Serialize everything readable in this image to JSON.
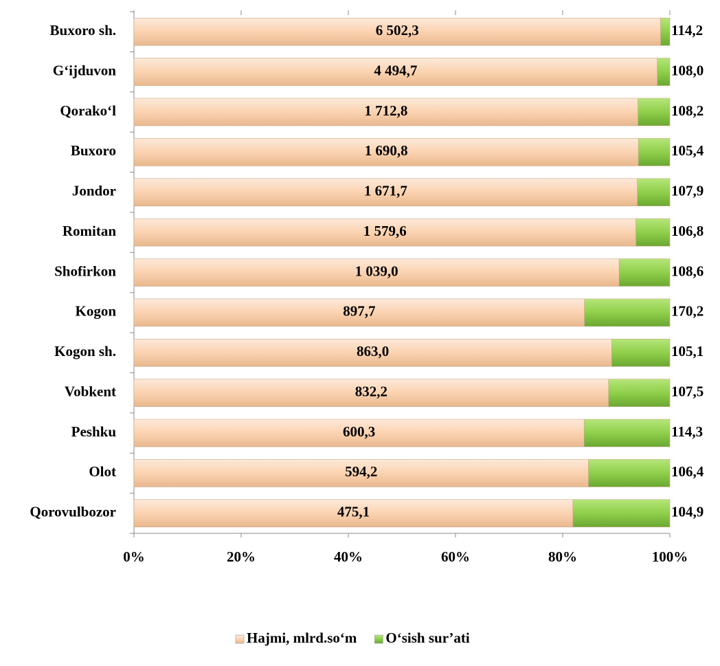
{
  "chart_data": {
    "type": "stacked_bar_100",
    "categories": [
      "Buxoro  sh.",
      "G‘ijduvon",
      "Qorako‘l",
      "Buxoro",
      "Jondor",
      "Romitan",
      "Shofirkon",
      "Kogon",
      "Kogon sh.",
      "Vobkent",
      "Peshku",
      "Olot",
      "Qorovulbozor"
    ],
    "series": [
      {
        "name": "Hajmi, mlrd.so‘m",
        "color": "#fbd3b1",
        "values": [
          6502.3,
          4494.7,
          1712.8,
          1690.8,
          1671.7,
          1579.6,
          1039.0,
          897.7,
          863.0,
          832.2,
          600.3,
          594.2,
          475.1
        ],
        "value_labels": [
          "6 502,3",
          "4 494,7",
          "1 712,8",
          "1 690,8",
          "1 671,7",
          "1 579,6",
          "1 039,0",
          "897,7",
          "863,0",
          "832,2",
          "600,3",
          "594,2",
          "475,1"
        ]
      },
      {
        "name": "O‘sish sur’ati",
        "color": "#8fcf4a",
        "values": [
          114.2,
          108.0,
          108.2,
          105.4,
          107.9,
          106.8,
          108.6,
          170.2,
          105.1,
          107.5,
          114.3,
          106.4,
          104.9
        ],
        "value_labels": [
          "114,2",
          "108,0",
          "108,2",
          "105,4",
          "107,9",
          "106,8",
          "108,6",
          "170,2",
          "105,1",
          "107,5",
          "114,3",
          "106,4",
          "104,9"
        ]
      }
    ],
    "xlim": [
      0,
      100
    ],
    "xticks": [
      {
        "value": 0,
        "label": "0%"
      },
      {
        "value": 20,
        "label": "20%"
      },
      {
        "value": 40,
        "label": "40%"
      },
      {
        "value": 60,
        "label": "60%"
      },
      {
        "value": 80,
        "label": "80%"
      },
      {
        "value": 100,
        "label": "100%"
      }
    ],
    "legend": "bottom"
  }
}
